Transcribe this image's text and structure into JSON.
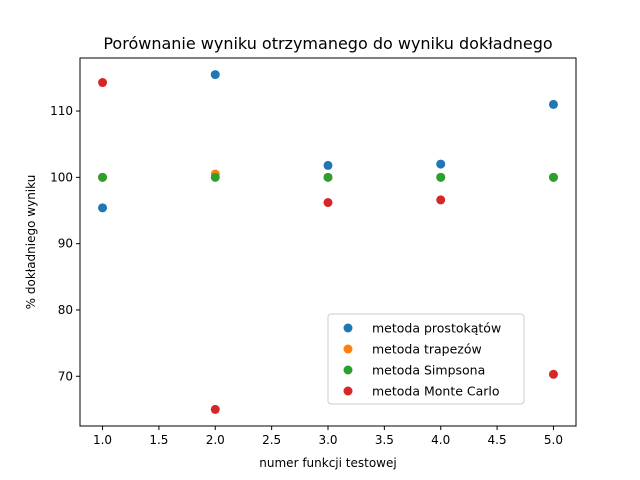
{
  "chart_data": {
    "type": "scatter",
    "title": "Porównanie wyniku otrzymanego do wyniku dokładnego",
    "xlabel": "numer funkcji testowej",
    "ylabel": "% dokładniego wyniku",
    "xlim": [
      0.8,
      5.2
    ],
    "ylim": [
      62.5,
      118
    ],
    "x_ticks": [
      1.0,
      1.5,
      2.0,
      2.5,
      3.0,
      3.5,
      4.0,
      4.5,
      5.0
    ],
    "x_tick_labels": [
      "1.0",
      "1.5",
      "2.0",
      "2.5",
      "3.0",
      "3.5",
      "4.0",
      "4.5",
      "5.0"
    ],
    "y_ticks": [
      70,
      80,
      90,
      100,
      110
    ],
    "y_tick_labels": [
      "70",
      "80",
      "90",
      "100",
      "110"
    ],
    "grid": false,
    "legend_position": "lower-right",
    "series": [
      {
        "name": "metoda prostokątów",
        "color": "#1f77b4",
        "x": [
          1,
          2,
          3,
          4,
          5
        ],
        "y": [
          95.4,
          115.5,
          101.8,
          102.0,
          111.0
        ]
      },
      {
        "name": "metoda trapezów",
        "color": "#ff7f0e",
        "x": [
          1,
          2,
          3,
          4,
          5
        ],
        "y": [
          100.0,
          100.5,
          100.0,
          100.0,
          100.0
        ]
      },
      {
        "name": "metoda Simpsona",
        "color": "#2ca02c",
        "x": [
          1,
          2,
          3,
          4,
          5
        ],
        "y": [
          100.0,
          100.0,
          100.0,
          100.0,
          100.0
        ]
      },
      {
        "name": "metoda Monte Carlo",
        "color": "#d62728",
        "x": [
          1,
          2,
          3,
          4,
          5
        ],
        "y": [
          114.3,
          65.0,
          96.2,
          96.6,
          70.3
        ]
      }
    ]
  }
}
